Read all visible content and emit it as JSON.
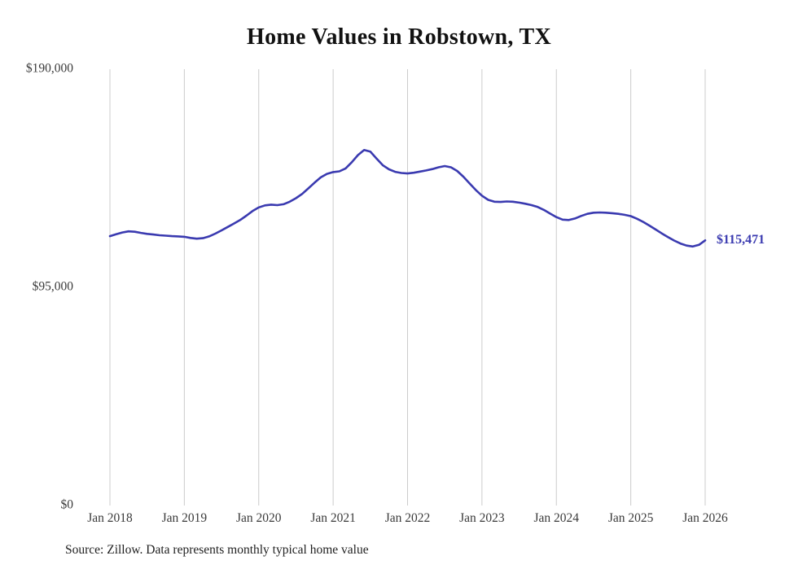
{
  "page": {
    "background": "#ffffff"
  },
  "chart_data": {
    "type": "line",
    "title": "Home Values in Robstown, TX",
    "source": "Source: Zillow. Data represents monthly typical home value",
    "end_label": "$115,471",
    "line_color": "#3a3ab0",
    "grid_color": "#cccccc",
    "axis_text_color": "#3a3a3a",
    "legend_position": "none",
    "grid": "vertical-only",
    "ylim": [
      0,
      190000
    ],
    "y_ticks": [
      {
        "value": 0,
        "label": "$0"
      },
      {
        "value": 95000,
        "label": "$95,000"
      },
      {
        "value": 190000,
        "label": "$190,000"
      }
    ],
    "x_ticks": [
      "Jan 2018",
      "Jan 2019",
      "Jan 2020",
      "Jan 2021",
      "Jan 2022",
      "Jan 2023",
      "Jan 2024",
      "Jan 2025",
      "Jan 2026"
    ],
    "x_start": "2018-01",
    "x_interval": "monthly",
    "series": [
      {
        "name": "Typical home value",
        "values": [
          117300,
          118100,
          118900,
          119400,
          119200,
          118700,
          118300,
          118000,
          117700,
          117500,
          117300,
          117200,
          117000,
          116500,
          116200,
          116400,
          117200,
          118400,
          119800,
          121300,
          122800,
          124300,
          126200,
          128200,
          129800,
          130700,
          131000,
          130800,
          131200,
          132300,
          133800,
          135700,
          138100,
          140600,
          142900,
          144400,
          145200,
          145500,
          146800,
          149500,
          152600,
          154800,
          154100,
          151100,
          148200,
          146400,
          145300,
          144800,
          144600,
          144900,
          145400,
          145900,
          146500,
          147300,
          147800,
          147300,
          145700,
          143200,
          140300,
          137400,
          134900,
          133100,
          132300,
          132200,
          132400,
          132300,
          131900,
          131400,
          130800,
          130000,
          128700,
          127100,
          125600,
          124500,
          124300,
          125000,
          126100,
          127000,
          127500,
          127600,
          127500,
          127300,
          127000,
          126600,
          126000,
          124900,
          123500,
          121900,
          120200,
          118500,
          116900,
          115400,
          114100,
          113200,
          112800,
          113500,
          115471
        ]
      }
    ]
  }
}
